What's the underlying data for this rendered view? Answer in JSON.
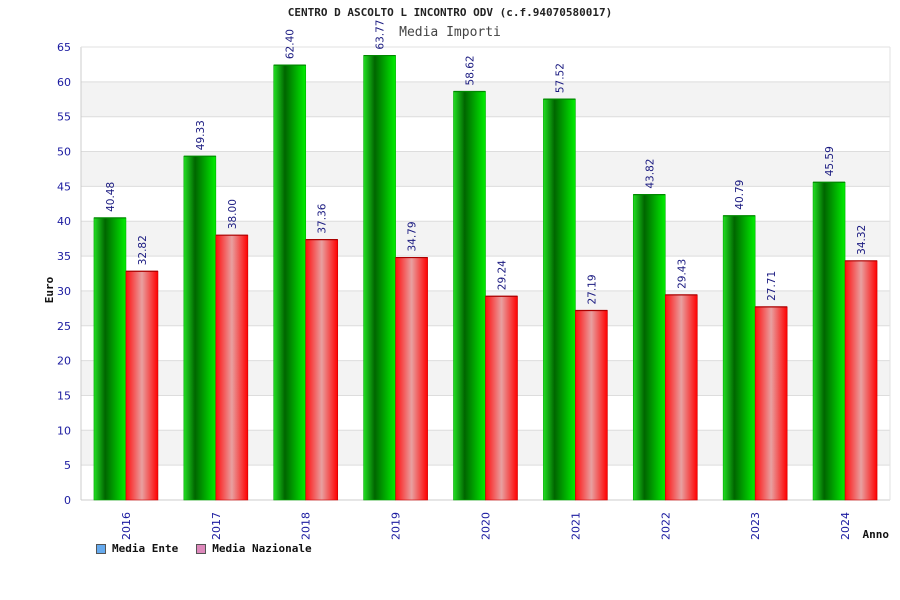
{
  "chart_data": {
    "type": "bar",
    "title": "CENTRO D ASCOLTO L INCONTRO ODV (c.f.94070580017)",
    "subtitle": "Media Importi",
    "xlabel": "Anno",
    "ylabel": "Euro",
    "ylim": [
      0,
      65
    ],
    "yticks": [
      0,
      5,
      10,
      15,
      20,
      25,
      30,
      35,
      40,
      45,
      50,
      55,
      60,
      65
    ],
    "categories": [
      "2016",
      "2017",
      "2018",
      "2019",
      "2020",
      "2021",
      "2022",
      "2023",
      "2024"
    ],
    "series": [
      {
        "name": "Media Ente",
        "values": [
          40.48,
          49.33,
          62.4,
          63.77,
          58.62,
          57.52,
          43.82,
          40.79,
          45.59
        ],
        "labels": [
          "40.48",
          "49.33",
          "62.40",
          "63.77",
          "58.62",
          "57.52",
          "43.82",
          "40.79",
          "45.59"
        ],
        "color": "#00cc00",
        "legend_color": "#66aaee"
      },
      {
        "name": "Media Nazionale",
        "values": [
          32.82,
          38.0,
          37.36,
          34.79,
          29.24,
          27.19,
          29.43,
          27.71,
          34.32
        ],
        "labels": [
          "32.82",
          "38.00",
          "37.36",
          "34.79",
          "29.24",
          "27.19",
          "29.43",
          "27.71",
          "34.32"
        ],
        "color": "#ff0000",
        "legend_color": "#dd88bb"
      }
    ],
    "grid": true,
    "legend_position": "bottom-left"
  }
}
